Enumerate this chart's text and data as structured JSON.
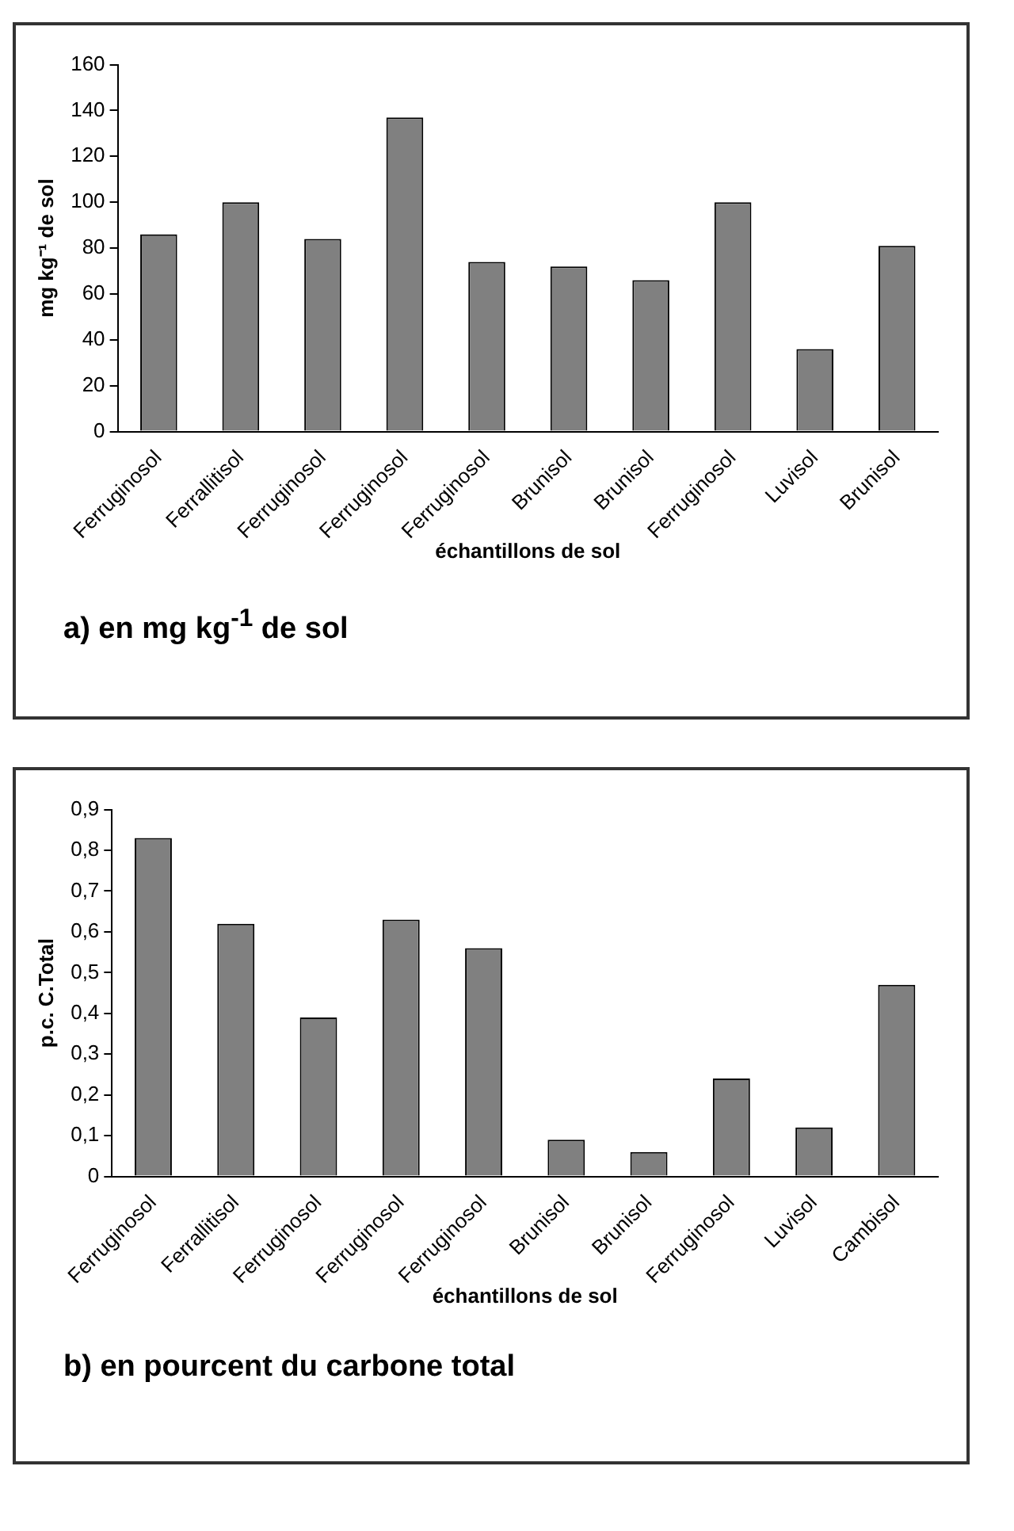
{
  "chart_data": [
    {
      "type": "bar",
      "title": "a) en mg kg$^{-1}$ de sol",
      "xlabel": "échantillons de sol",
      "ylabel": "mg kg⁻¹ de sol",
      "categories": [
        "Ferruginosol",
        "Ferrallitisol",
        "Ferruginosol",
        "Ferruginosol",
        "Ferruginosol",
        "Brunisol",
        "Brunisol",
        "Ferruginosol",
        "Luvisol",
        "Brunisol"
      ],
      "values": [
        86,
        100,
        84,
        137,
        74,
        72,
        66,
        100,
        36,
        81
      ],
      "color": "#808080",
      "ylim": [
        0,
        160
      ],
      "yticks": [
        0,
        20,
        40,
        60,
        80,
        100,
        120,
        140,
        160
      ],
      "grid": false
    },
    {
      "type": "bar",
      "title": "b) en pourcent du carbone total",
      "xlabel": "échantillons de sol",
      "ylabel": "p.c. C.Total",
      "categories": [
        "Ferruginosol",
        "Ferrallitisol",
        "Ferruginosol",
        "Ferruginosol",
        "Ferruginosol",
        "Brunisol",
        "Brunisol",
        "Ferruginosol",
        "Luvisol",
        "Cambisol"
      ],
      "values": [
        0.83,
        0.62,
        0.39,
        0.63,
        0.56,
        0.09,
        0.06,
        0.24,
        0.12,
        0.47
      ],
      "color": "#808080",
      "ylim": [
        0,
        0.9
      ],
      "yticks": [
        0,
        {
          "value": 0.1,
          "label": "0,1"
        },
        {
          "value": 0.2,
          "label": "0,2"
        },
        {
          "value": 0.3,
          "label": "0,3"
        },
        {
          "value": 0.4,
          "label": "0,4"
        },
        {
          "value": 0.5,
          "label": "0,5"
        },
        {
          "value": 0.6,
          "label": "0,6"
        },
        {
          "value": 0.7,
          "label": "0,7"
        },
        {
          "value": 0.8,
          "label": "0,8"
        },
        {
          "value": 0.9,
          "label": "0,9"
        }
      ],
      "grid": false
    }
  ]
}
